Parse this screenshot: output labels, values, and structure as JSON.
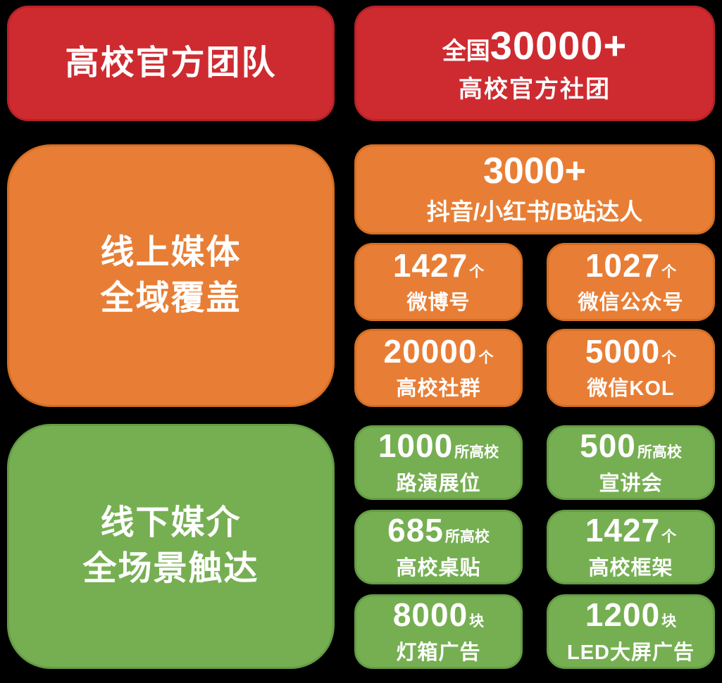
{
  "background": "#000000",
  "colors": {
    "red": "#CE2B30",
    "orange": "#E87E35",
    "green": "#76AF52",
    "text": "#FFFFFF"
  },
  "sections": [
    {
      "id": "campus-official-team",
      "color": "red",
      "title": "高校官方团队",
      "hero": {
        "prefix": "全国",
        "number": "30000+",
        "label": "高校官方社团"
      }
    },
    {
      "id": "online-media",
      "color": "orange",
      "title_line1": "线上媒体",
      "title_line2": "全域覆盖",
      "wide": {
        "number": "3000+",
        "label": "抖音/小红书/B站达人"
      },
      "stats": [
        {
          "number": "1427",
          "unit": "个",
          "label": "微博号"
        },
        {
          "number": "1027",
          "unit": "个",
          "label": "微信公众号"
        },
        {
          "number": "20000",
          "unit": "个",
          "label": "高校社群"
        },
        {
          "number": "5000",
          "unit": "个",
          "label": "微信KOL"
        }
      ]
    },
    {
      "id": "offline-media",
      "color": "green",
      "title_line1": "线下媒介",
      "title_line2": "全场景触达",
      "stats": [
        {
          "number": "1000",
          "unit": "所高校",
          "label": "路演展位"
        },
        {
          "number": "500",
          "unit": "所高校",
          "label": "宣讲会"
        },
        {
          "number": "685",
          "unit": "所高校",
          "label": "高校桌贴"
        },
        {
          "number": "1427",
          "unit": "个",
          "label": "高校框架"
        },
        {
          "number": "8000",
          "unit": "块",
          "label": "灯箱广告"
        },
        {
          "number": "1200",
          "unit": "块",
          "label": "LED大屏广告"
        }
      ]
    }
  ]
}
